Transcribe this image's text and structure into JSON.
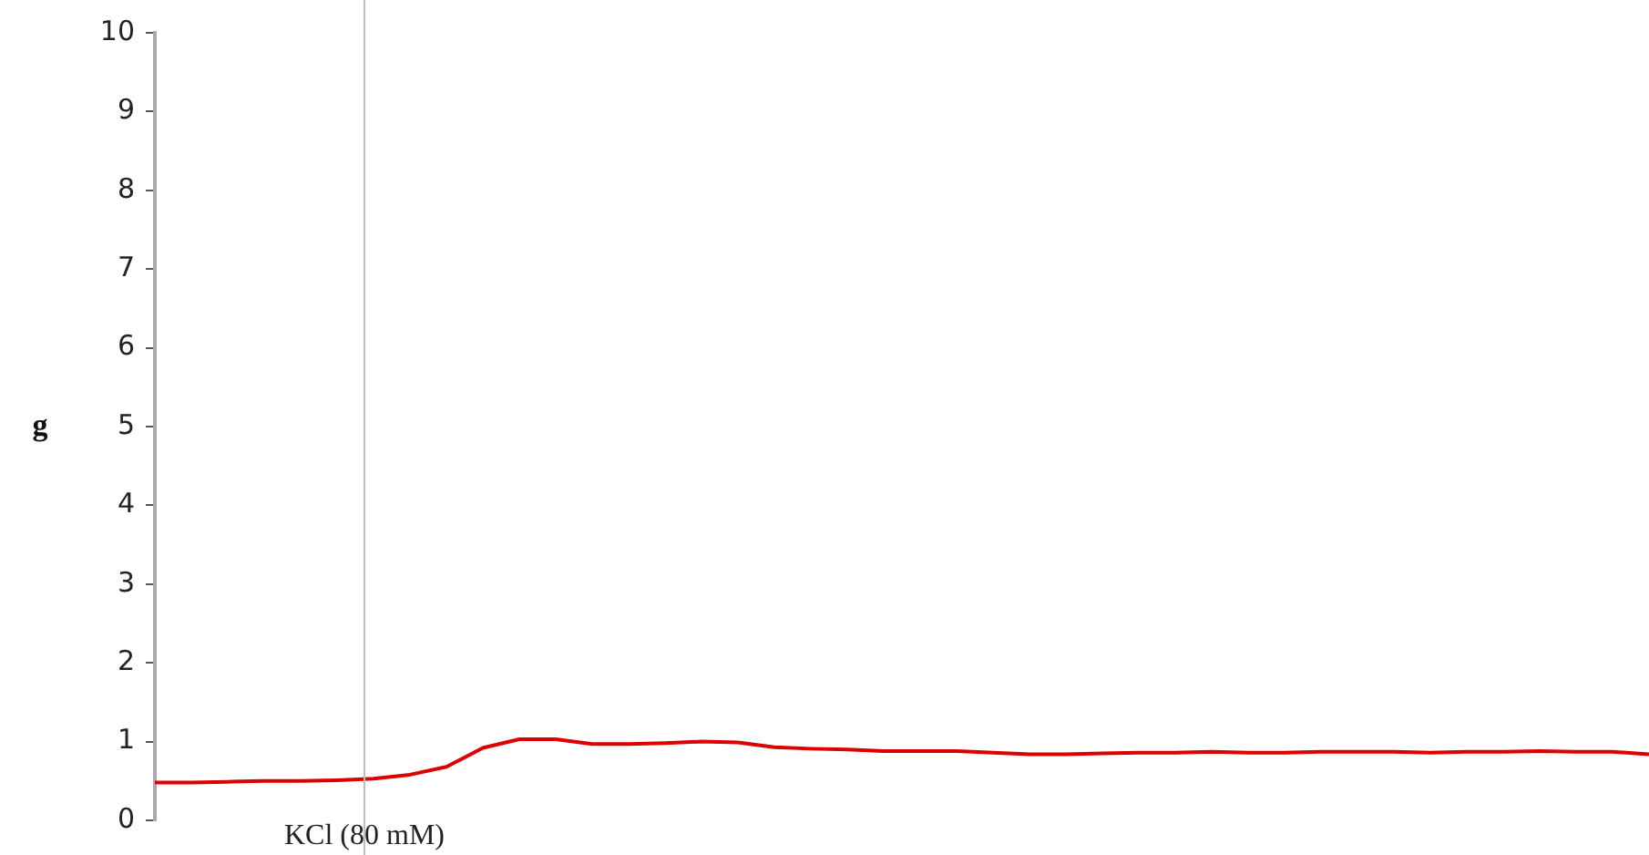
{
  "chart_data": {
    "type": "line",
    "ylabel": "g",
    "categories": [
      null,
      null,
      null,
      null,
      null,
      null,
      null,
      null,
      null,
      null,
      null,
      null,
      null,
      null,
      null,
      null,
      null,
      null,
      null,
      null,
      null,
      null,
      null,
      null,
      null,
      null,
      null,
      null,
      null,
      null,
      null,
      null,
      null,
      null,
      null,
      null,
      null,
      null,
      null,
      null,
      null,
      null
    ],
    "series": [
      {
        "color": "#dd0000",
        "values": [
          0.48,
          0.48,
          0.49,
          0.5,
          0.5,
          0.51,
          0.53,
          0.58,
          0.68,
          0.92,
          1.03,
          1.03,
          0.97,
          0.97,
          0.98,
          1.0,
          0.99,
          0.93,
          0.91,
          0.9,
          0.88,
          0.88,
          0.88,
          0.86,
          0.84,
          0.84,
          0.85,
          0.86,
          0.86,
          0.87,
          0.86,
          0.86,
          0.87,
          0.87,
          0.87,
          0.86,
          0.87,
          0.87,
          0.88,
          0.87,
          0.87,
          0.84
        ]
      }
    ],
    "ylim": [
      0,
      10
    ],
    "yticks": [
      0,
      1,
      2,
      3,
      4,
      5,
      6,
      7,
      8,
      9,
      10
    ],
    "grid": false,
    "legend": false,
    "marker": "none",
    "line_style": "solid",
    "annotations": [
      "KCl (80 mM)"
    ]
  }
}
